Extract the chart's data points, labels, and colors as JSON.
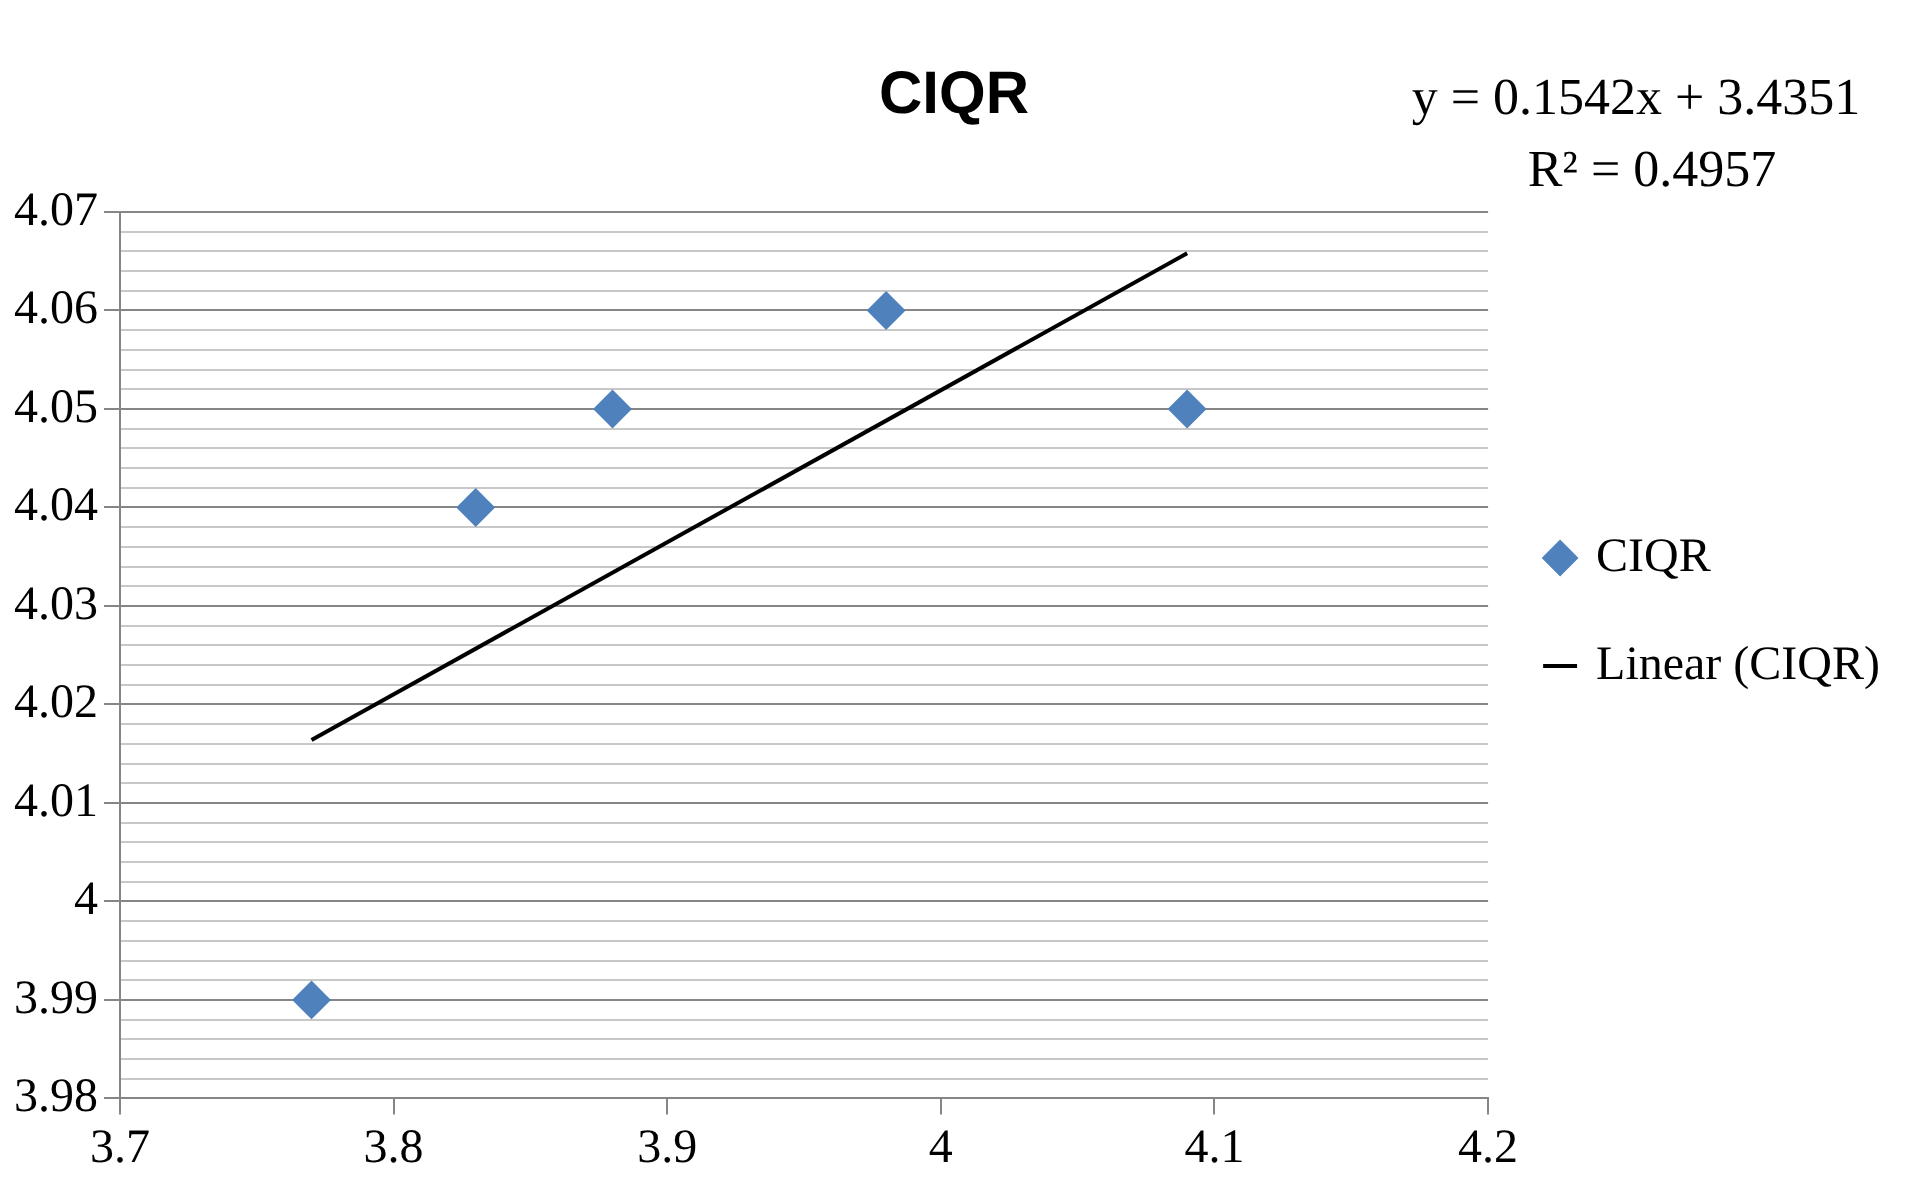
{
  "chart_data": {
    "type": "scatter",
    "title": "CIQR",
    "x": [
      3.77,
      3.83,
      3.88,
      3.98,
      4.09
    ],
    "series": [
      {
        "name": "CIQR",
        "color": "#4f81bd",
        "marker": "diamond",
        "values": [
          3.99,
          4.04,
          4.05,
          4.06,
          4.05
        ]
      },
      {
        "name": "Linear (CIQR)",
        "type": "line",
        "color": "#000000",
        "line_style": "solid",
        "x": [
          3.77,
          4.09
        ],
        "values": [
          4.0164,
          4.0658
        ]
      }
    ],
    "xlim": [
      3.7,
      4.2
    ],
    "xticks": [
      3.7,
      3.8,
      3.9,
      4,
      4.1,
      4.2
    ],
    "ylim": [
      3.98,
      4.07
    ],
    "yticks": [
      3.98,
      {
        "value": 3.982,
        "label": null
      },
      {
        "value": 3.984,
        "label": null
      },
      {
        "value": 3.986,
        "label": null
      },
      {
        "value": 3.988,
        "label": null
      },
      3.99,
      {
        "value": 3.992,
        "label": null
      },
      {
        "value": 3.994,
        "label": null
      },
      {
        "value": 3.996,
        "label": null
      },
      {
        "value": 3.998,
        "label": null
      },
      4,
      {
        "value": 4.002,
        "label": null
      },
      {
        "value": 4.004,
        "label": null
      },
      {
        "value": 4.006,
        "label": null
      },
      {
        "value": 4.008,
        "label": null
      },
      4.01,
      {
        "value": 4.012,
        "label": null
      },
      {
        "value": 4.014,
        "label": null
      },
      {
        "value": 4.016,
        "label": null
      },
      {
        "value": 4.018,
        "label": null
      },
      4.02,
      {
        "value": 4.022,
        "label": null
      },
      {
        "value": 4.024,
        "label": null
      },
      {
        "value": 4.026,
        "label": null
      },
      {
        "value": 4.028,
        "label": null
      },
      4.03,
      {
        "value": 4.032,
        "label": null
      },
      {
        "value": 4.034,
        "label": null
      },
      {
        "value": 4.036,
        "label": null
      },
      {
        "value": 4.038,
        "label": null
      },
      4.04,
      {
        "value": 4.042,
        "label": null
      },
      {
        "value": 4.044,
        "label": null
      },
      {
        "value": 4.046,
        "label": null
      },
      {
        "value": 4.048,
        "label": null
      },
      4.05,
      {
        "value": 4.052,
        "label": null
      },
      {
        "value": 4.054,
        "label": null
      },
      {
        "value": 4.056,
        "label": null
      },
      {
        "value": 4.058,
        "label": null
      },
      4.06,
      {
        "value": 4.062,
        "label": null
      },
      {
        "value": 4.064,
        "label": null
      },
      {
        "value": 4.066,
        "label": null
      },
      {
        "value": 4.068,
        "label": null
      },
      4.07
    ],
    "grid": "y",
    "legend": "right",
    "annotations": [
      "y = 0.1542x + 3.4351",
      "R² = 0.4957"
    ]
  }
}
